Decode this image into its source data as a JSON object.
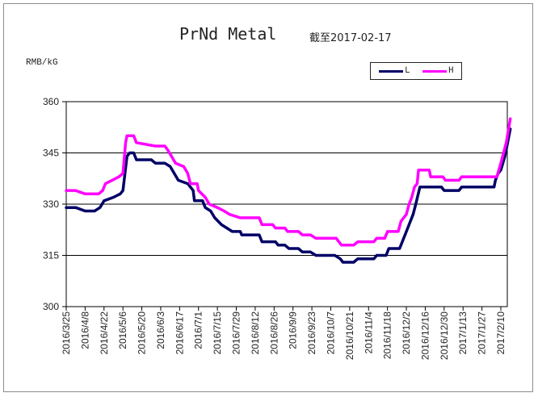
{
  "chart_data": {
    "type": "line",
    "title": "PrNd Metal",
    "subtitle": "截至2017-02-17",
    "ylabel": "RMB/kG",
    "ylim": [
      300,
      360
    ],
    "yticks": [
      300,
      315,
      330,
      345,
      360
    ],
    "grid": "horizontal",
    "legend_position": "top-right",
    "x_tick_labels": [
      "2016/3/25",
      "2016/4/8",
      "2016/4/22",
      "2016/5/6",
      "2016/5/20",
      "2016/6/3",
      "2016/6/17",
      "2016/7/1",
      "2016/7/15",
      "2016/7/29",
      "2016/8/12",
      "2016/8/26",
      "2016/9/9",
      "2016/9/23",
      "2016/10/7",
      "2016/10/21",
      "2016/11/4",
      "2016/11/18",
      "2016/12/2",
      "2016/12/16",
      "2016/12/30",
      "2017/1/13",
      "2017/1/27",
      "2017/2/10"
    ],
    "series": [
      {
        "name": "L",
        "color": "#000066",
        "points": [
          [
            "2016/3/25",
            329
          ],
          [
            "2016/4/1",
            329
          ],
          [
            "2016/4/8",
            328
          ],
          [
            "2016/4/15",
            328
          ],
          [
            "2016/4/19",
            329
          ],
          [
            "2016/4/22",
            331
          ],
          [
            "2016/4/29",
            332
          ],
          [
            "2016/5/4",
            333
          ],
          [
            "2016/5/6",
            334
          ],
          [
            "2016/5/9",
            344
          ],
          [
            "2016/5/11",
            345
          ],
          [
            "2016/5/14",
            345
          ],
          [
            "2016/5/16",
            343
          ],
          [
            "2016/5/27",
            343
          ],
          [
            "2016/5/30",
            342
          ],
          [
            "2016/6/6",
            342
          ],
          [
            "2016/6/10",
            341
          ],
          [
            "2016/6/13",
            339
          ],
          [
            "2016/6/16",
            337
          ],
          [
            "2016/6/23",
            336
          ],
          [
            "2016/6/27",
            334
          ],
          [
            "2016/6/28",
            331
          ],
          [
            "2016/7/4",
            331
          ],
          [
            "2016/7/6",
            329
          ],
          [
            "2016/7/10",
            328
          ],
          [
            "2016/7/13",
            326
          ],
          [
            "2016/7/18",
            324
          ],
          [
            "2016/7/22",
            323
          ],
          [
            "2016/7/26",
            322
          ],
          [
            "2016/8/1",
            322
          ],
          [
            "2016/8/2",
            321
          ],
          [
            "2016/8/15",
            321
          ],
          [
            "2016/8/17",
            319
          ],
          [
            "2016/8/27",
            319
          ],
          [
            "2016/8/29",
            318
          ],
          [
            "2016/9/3",
            318
          ],
          [
            "2016/9/6",
            317
          ],
          [
            "2016/9/13",
            317
          ],
          [
            "2016/9/16",
            316
          ],
          [
            "2016/9/22",
            316
          ],
          [
            "2016/9/26",
            315
          ],
          [
            "2016/10/10",
            315
          ],
          [
            "2016/10/14",
            314
          ],
          [
            "2016/10/16",
            313
          ],
          [
            "2016/10/24",
            313
          ],
          [
            "2016/10/27",
            314
          ],
          [
            "2016/11/8",
            314
          ],
          [
            "2016/11/10",
            315
          ],
          [
            "2016/11/17",
            315
          ],
          [
            "2016/11/19",
            317
          ],
          [
            "2016/11/27",
            317
          ],
          [
            "2016/11/29",
            319
          ],
          [
            "2016/12/1",
            321
          ],
          [
            "2016/12/4",
            324
          ],
          [
            "2016/12/7",
            327
          ],
          [
            "2016/12/9",
            330
          ],
          [
            "2016/12/12",
            335
          ],
          [
            "2016/12/28",
            335
          ],
          [
            "2016/12/30",
            334
          ],
          [
            "2017/1/10",
            334
          ],
          [
            "2017/1/12",
            335
          ],
          [
            "2017/2/5",
            335
          ],
          [
            "2017/2/6",
            337
          ],
          [
            "2017/2/8",
            339
          ],
          [
            "2017/2/10",
            340
          ],
          [
            "2017/2/13",
            344
          ],
          [
            "2017/2/15",
            348
          ],
          [
            "2017/2/17",
            352
          ]
        ]
      },
      {
        "name": "H",
        "color": "#ff00ff",
        "points": [
          [
            "2016/3/25",
            334
          ],
          [
            "2016/4/1",
            334
          ],
          [
            "2016/4/8",
            333
          ],
          [
            "2016/4/18",
            333
          ],
          [
            "2016/4/21",
            334
          ],
          [
            "2016/4/23",
            336
          ],
          [
            "2016/4/28",
            337
          ],
          [
            "2016/5/3",
            338
          ],
          [
            "2016/5/6",
            339
          ],
          [
            "2016/5/8",
            348
          ],
          [
            "2016/5/9",
            350
          ],
          [
            "2016/5/14",
            350
          ],
          [
            "2016/5/16",
            348
          ],
          [
            "2016/5/30",
            347
          ],
          [
            "2016/6/6",
            347
          ],
          [
            "2016/6/8",
            346
          ],
          [
            "2016/6/11",
            344
          ],
          [
            "2016/6/14",
            342
          ],
          [
            "2016/6/20",
            341
          ],
          [
            "2016/6/23",
            339
          ],
          [
            "2016/6/25",
            336
          ],
          [
            "2016/6/30",
            336
          ],
          [
            "2016/7/1",
            334
          ],
          [
            "2016/7/6",
            332
          ],
          [
            "2016/7/9",
            330
          ],
          [
            "2016/7/15",
            329
          ],
          [
            "2016/7/20",
            328
          ],
          [
            "2016/7/24",
            327
          ],
          [
            "2016/8/1",
            326
          ],
          [
            "2016/8/15",
            326
          ],
          [
            "2016/8/17",
            324
          ],
          [
            "2016/8/25",
            324
          ],
          [
            "2016/8/27",
            323
          ],
          [
            "2016/9/3",
            323
          ],
          [
            "2016/9/5",
            322
          ],
          [
            "2016/9/13",
            322
          ],
          [
            "2016/9/16",
            321
          ],
          [
            "2016/9/22",
            321
          ],
          [
            "2016/9/26",
            320
          ],
          [
            "2016/10/11",
            320
          ],
          [
            "2016/10/13",
            319
          ],
          [
            "2016/10/15",
            318
          ],
          [
            "2016/10/24",
            318
          ],
          [
            "2016/10/27",
            319
          ],
          [
            "2016/11/8",
            319
          ],
          [
            "2016/11/10",
            320
          ],
          [
            "2016/11/16",
            320
          ],
          [
            "2016/11/18",
            322
          ],
          [
            "2016/11/26",
            322
          ],
          [
            "2016/11/28",
            325
          ],
          [
            "2016/12/2",
            327
          ],
          [
            "2016/12/4",
            330
          ],
          [
            "2016/12/6",
            332
          ],
          [
            "2016/12/8",
            335
          ],
          [
            "2016/12/10",
            336
          ],
          [
            "2016/12/11",
            340
          ],
          [
            "2016/12/19",
            340
          ],
          [
            "2016/12/20",
            338
          ],
          [
            "2016/12/29",
            338
          ],
          [
            "2016/12/31",
            337
          ],
          [
            "2017/1/10",
            337
          ],
          [
            "2017/1/12",
            338
          ],
          [
            "2017/2/7",
            338
          ],
          [
            "2017/2/10",
            342
          ],
          [
            "2017/2/14",
            348
          ],
          [
            "2017/2/17",
            355
          ]
        ]
      }
    ]
  }
}
